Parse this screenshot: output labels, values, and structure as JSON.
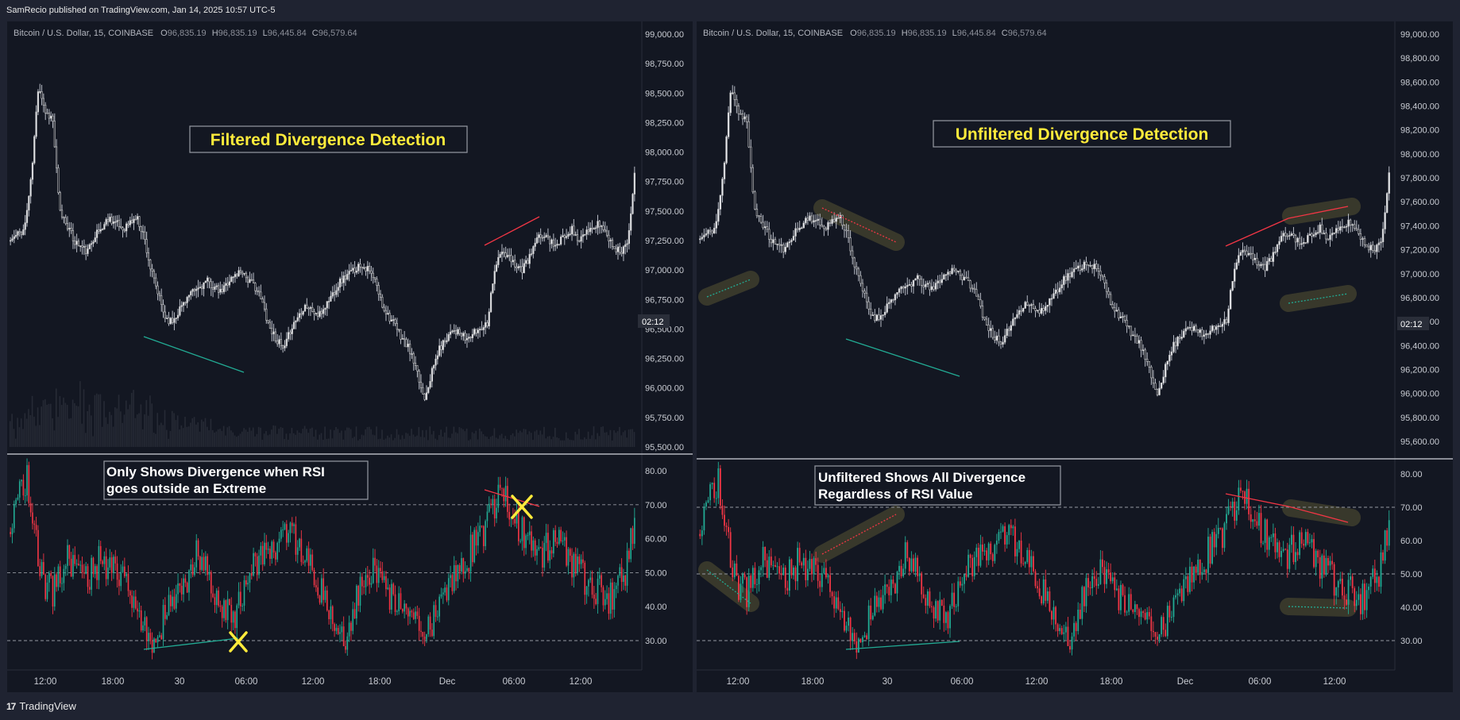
{
  "header": {
    "published": "SamRecio published on TradingView.com, Jan 14, 2025 10:57 UTC-5"
  },
  "footer": {
    "brand": "TradingView",
    "logo": "17"
  },
  "colors": {
    "background": "#131722",
    "frame": "#1f2331",
    "candle_up": "#c8c8c8",
    "rsi_up": "#22ab94",
    "rsi_down": "#f23645",
    "bear_div": "#f23645",
    "bull_div": "#22ab94",
    "title": "#ffeb3b"
  },
  "chart_data": [
    {
      "type": "candlestick",
      "panel": "left",
      "symbol": "Bitcoin / U.S. Dollar, 15, COINBASE",
      "ohlc": {
        "O_label": "O",
        "O": "96,835.19",
        "H_label": "H",
        "H": "96,835.19",
        "L_label": "L",
        "L": "96,445.84",
        "C_label": "C",
        "C": "96,579.64"
      },
      "title": "Filtered Divergence Detection",
      "y_ticks": [
        "99,000.00",
        "98,750.00",
        "98,500.00",
        "98,250.00",
        "98,000.00",
        "97,750.00",
        "97,500.00",
        "97,250.00",
        "97,000.00",
        "96,750.00",
        "96,500.00",
        "96,250.00",
        "96,000.00",
        "95,750.00",
        "95,500.00"
      ],
      "ylim": [
        95480,
        99020
      ],
      "countdown": "02:12",
      "x_ticks": [
        "12:00",
        "18:00",
        "30",
        "06:00",
        "12:00",
        "18:00",
        "Dec",
        "06:00",
        "12:00"
      ],
      "price_path": [
        97250,
        97300,
        97350,
        97800,
        98600,
        98350,
        98300,
        97500,
        97400,
        97250,
        97200,
        97150,
        97300,
        97350,
        97450,
        97400,
        97350,
        97400,
        97450,
        97300,
        97000,
        96800,
        96600,
        96550,
        96650,
        96750,
        96800,
        96850,
        96900,
        96850,
        96800,
        96900,
        96950,
        97000,
        96900,
        96850,
        96700,
        96500,
        96400,
        96300,
        96500,
        96600,
        96700,
        96650,
        96600,
        96700,
        96800,
        96900,
        96950,
        97000,
        97050,
        97000,
        96900,
        96700,
        96600,
        96500,
        96400,
        96300,
        96100,
        95900,
        96100,
        96300,
        96400,
        96500,
        96450,
        96400,
        96450,
        96500,
        96550,
        97000,
        97150,
        97100,
        97050,
        97000,
        97100,
        97250,
        97300,
        97250,
        97200,
        97300,
        97350,
        97250,
        97300,
        97350,
        97400,
        97300,
        97200,
        97150,
        97250,
        97800
      ],
      "divergences": [
        {
          "kind": "bullish",
          "price": [
            96470,
            96150
          ],
          "rsi": [
            27.5,
            30
          ]
        },
        {
          "kind": "bearish",
          "price": [
            97210,
            97470
          ],
          "rsi": [
            74.5,
            68
          ]
        }
      ],
      "rsi": {
        "annotation": [
          "Only Shows Divergence when RSI",
          "goes outside an Extreme"
        ],
        "levels": [
          30,
          50,
          70
        ],
        "y_ticks": [
          "80.00",
          "70.00",
          "60.00",
          "50.00",
          "40.00",
          "30.00"
        ],
        "ylim": [
          24,
          82
        ],
        "markers": [
          "x-icon",
          "x-icon"
        ]
      }
    },
    {
      "type": "candlestick",
      "panel": "right",
      "symbol": "Bitcoin / U.S. Dollar, 15, COINBASE",
      "ohlc": {
        "O_label": "O",
        "O": "96,835.19",
        "H_label": "H",
        "H": "96,835.19",
        "L_label": "L",
        "L": "96,445.84",
        "C_label": "C",
        "C": "96,579.64"
      },
      "title": "Unfiltered Divergence Detection",
      "y_ticks": [
        "99,000.00",
        "98,800.00",
        "98,600.00",
        "98,400.00",
        "98,200.00",
        "98,000.00",
        "97,800.00",
        "97,600.00",
        "97,400.00",
        "97,200.00",
        "97,000.00",
        "96,800.00",
        "96,600.00",
        "96,400.00",
        "96,200.00",
        "96,000.00",
        "95,800.00",
        "95,600.00"
      ],
      "ylim": [
        95480,
        99040
      ],
      "countdown": "02:12",
      "x_ticks": [
        "12:00",
        "18:00",
        "30",
        "06:00",
        "12:00",
        "18:00",
        "Dec",
        "06:00",
        "12:00"
      ],
      "rsi": {
        "annotation": [
          "Unfiltered Shows All Divergence",
          "Regardless of RSI Value"
        ],
        "levels": [
          30,
          50,
          70
        ],
        "y_ticks": [
          "80.00",
          "70.00",
          "60.00",
          "50.00",
          "40.00",
          "30.00"
        ],
        "ylim": [
          24,
          82
        ]
      }
    }
  ]
}
